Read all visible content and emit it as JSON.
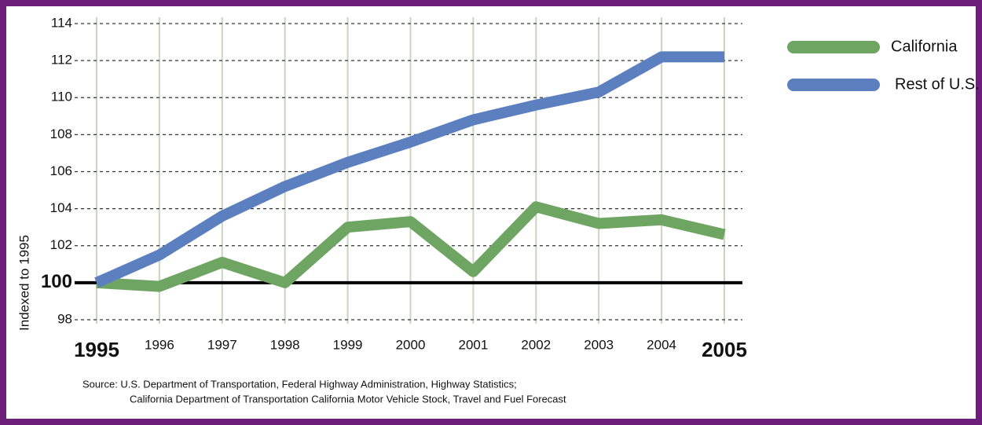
{
  "chart_data": {
    "type": "line",
    "y_label": "Indexed to 1995",
    "categories": [
      "1995",
      "1996",
      "1997",
      "1998",
      "1999",
      "2000",
      "2001",
      "2002",
      "2003",
      "2004",
      "2005"
    ],
    "series": [
      {
        "name": "California",
        "color": "#6fa563",
        "values": [
          100,
          99.8,
          101.1,
          100.0,
          103.0,
          103.3,
          100.6,
          104.1,
          103.2,
          103.4,
          102.6
        ]
      },
      {
        "name": "Rest of U.S.",
        "color": "#5b7fbf",
        "values": [
          100,
          101.5,
          103.6,
          105.2,
          106.5,
          107.6,
          108.8,
          109.6,
          110.3,
          112.2,
          112.2
        ]
      }
    ],
    "ylim": [
      98,
      114
    ],
    "yticks": [
      98,
      100,
      102,
      104,
      106,
      108,
      110,
      112,
      114
    ],
    "baseline": 100,
    "grid": true,
    "legend": "right",
    "source": [
      "Source: U.S. Department of Transportation, Federal Highway Administration, Highway Statistics;",
      "California Department of Transportation California Motor Vehicle Stock, Travel and Fuel Forecast"
    ]
  }
}
